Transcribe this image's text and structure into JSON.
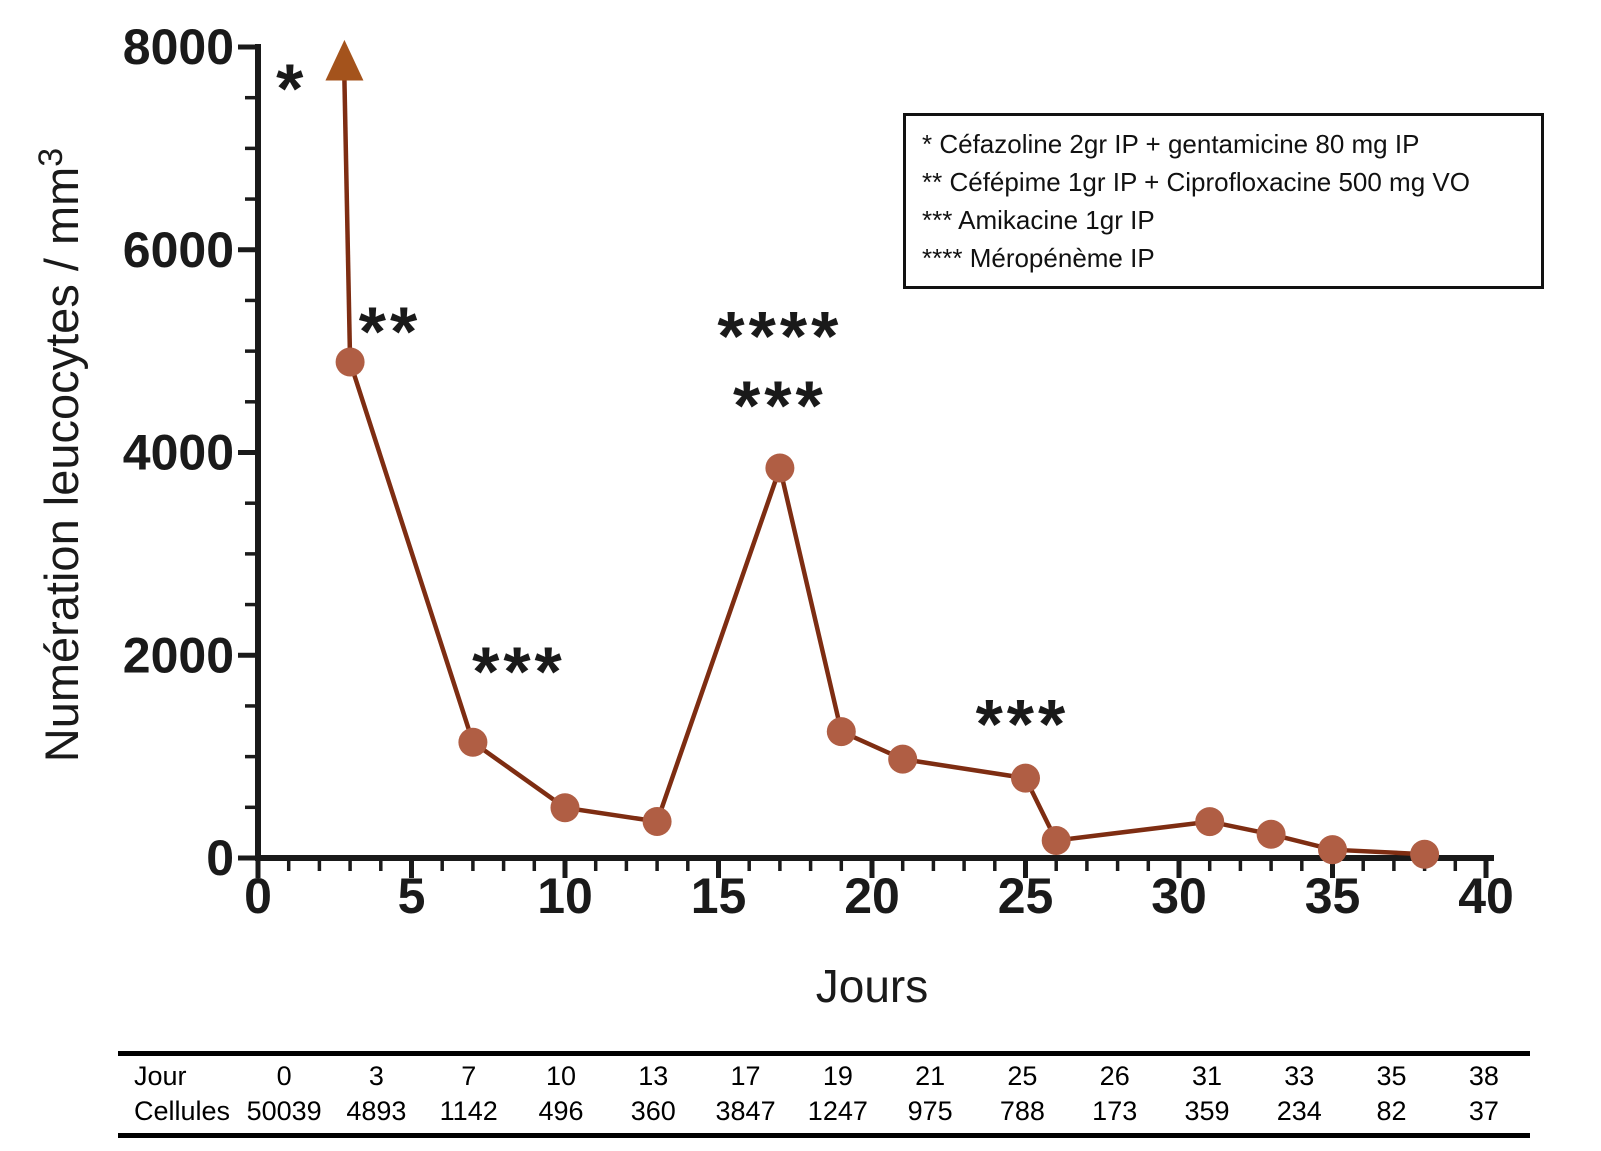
{
  "chart_data": {
    "type": "line",
    "title": "",
    "xlabel": "Jours",
    "ylabel": {
      "text": "Numération leucocytes / mm",
      "superscript": "3"
    },
    "x": [
      0,
      3,
      7,
      10,
      13,
      17,
      19,
      21,
      25,
      26,
      31,
      33,
      35,
      38
    ],
    "values": [
      50039,
      4893,
      1142,
      496,
      360,
      3847,
      1247,
      975,
      788,
      173,
      359,
      234,
      82,
      37
    ],
    "xlim": [
      0,
      40
    ],
    "ylim": [
      0,
      8000
    ],
    "x_major_ticks": [
      0,
      5,
      10,
      15,
      20,
      25,
      30,
      35,
      40
    ],
    "x_minor_step": 1,
    "y_major_ticks": [
      0,
      2000,
      4000,
      6000,
      8000
    ],
    "y_minor_step": 500,
    "grid": false,
    "offscale_point": {
      "x": 0,
      "value": 50039,
      "rendered_as": "up-arrow"
    },
    "annotations": [
      {
        "text": "*",
        "x": 1.1,
        "y": 7700
      },
      {
        "text": "**",
        "x": 4.3,
        "y": 5300
      },
      {
        "text": "***",
        "x": 8.5,
        "y": 1950
      },
      {
        "text": "****",
        "x": 17,
        "y": 5260
      },
      {
        "text": "***",
        "x": 17,
        "y": 4570
      },
      {
        "text": "***",
        "x": 24.9,
        "y": 1430
      }
    ],
    "legend": {
      "position": "top-right",
      "items": [
        "* Céfazoline 2gr IP + gentamicine 80 mg IP",
        "** Céfépime 1gr IP + Ciprofloxacine 500 mg VO",
        "*** Amikacine 1gr IP",
        "**** Méropénème IP"
      ]
    },
    "colors": {
      "line": "#7E2D12",
      "marker": "#B05E44",
      "arrow": "#A4531C",
      "axis": "#1A1A1A",
      "text": "#1A1A1A"
    }
  },
  "table": {
    "rows": [
      {
        "label": "Jour",
        "values": [
          "0",
          "3",
          "7",
          "10",
          "13",
          "17",
          "19",
          "21",
          "25",
          "26",
          "31",
          "33",
          "35",
          "38"
        ]
      },
      {
        "label": "Cellules",
        "values": [
          "50039",
          "4893",
          "1142",
          "496",
          "360",
          "3847",
          "1247",
          "975",
          "788",
          "173",
          "359",
          "234",
          "82",
          "37"
        ]
      }
    ]
  }
}
